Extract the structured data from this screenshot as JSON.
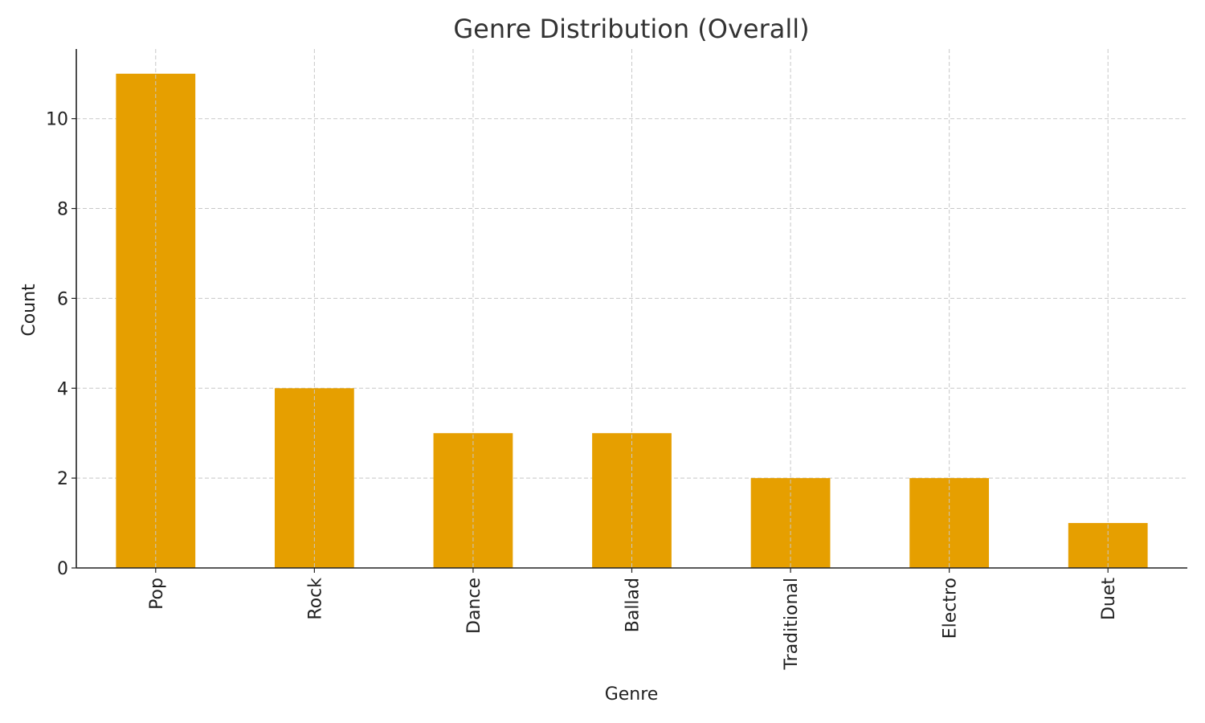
{
  "chart_data": {
    "type": "bar",
    "title": "Genre Distribution (Overall)",
    "xlabel": "Genre",
    "ylabel": "Count",
    "categories": [
      "Pop",
      "Rock",
      "Dance",
      "Ballad",
      "Traditional",
      "Electro",
      "Duet"
    ],
    "values": [
      11,
      4,
      3,
      3,
      2,
      2,
      1
    ],
    "ylim": [
      0,
      11.55
    ],
    "yticks": [
      0,
      2,
      4,
      6,
      8,
      10
    ],
    "grid": true,
    "bar_color": "#E69F00",
    "grid_color": "#c8c8c8"
  }
}
